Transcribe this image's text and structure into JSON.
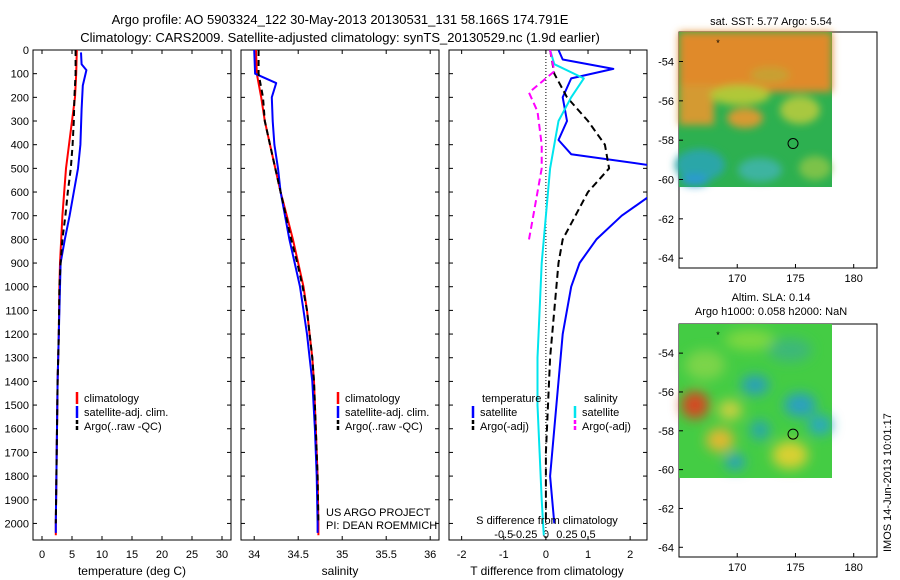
{
  "header": {
    "title_line1": "Argo profile: AO 5903324_122 30-May-2013 20130531_131 58.166S 174.791E",
    "title_line2": "Climatology: CARS2009. Satellite-adjusted climatology: synTS_20130529.nc (1.9d earlier)"
  },
  "side_stamp": "IMOS 14-Jun-2013 10:01:17",
  "colors": {
    "climatology": "#ff0000",
    "satellite": "#0000ff",
    "argo": "#000000",
    "sal_satellite": "#00e5ee",
    "sal_argo": "#ff00ff"
  },
  "chart_data": [
    {
      "id": "temperature",
      "type": "line",
      "xlabel": "temperature (deg C)",
      "ylabel": "",
      "xlim": [
        -1.5,
        31.5
      ],
      "ylim": [
        2070,
        0
      ],
      "xticks": [
        0,
        5,
        10,
        15,
        20,
        25,
        30
      ],
      "xtick_labels": [
        "0",
        "5",
        "10",
        "15",
        "20",
        "25",
        "30"
      ],
      "yticks": [
        0,
        100,
        200,
        300,
        400,
        500,
        600,
        700,
        800,
        900,
        1000,
        1100,
        1200,
        1300,
        1400,
        1500,
        1600,
        1700,
        1800,
        1900,
        2000
      ],
      "ytick_labels": [
        "0",
        "100",
        "200",
        "300",
        "400",
        "500",
        "600",
        "700",
        "800",
        "900",
        "1000",
        "1100",
        "1200",
        "1300",
        "1400",
        "1500",
        "1600",
        "1700",
        "1800",
        "1900",
        "2000"
      ],
      "legend": [
        "climatology",
        "satellite-adj. clim.",
        "Argo(..raw -QC)"
      ],
      "series": [
        {
          "name": "climatology",
          "color": "#ff0000",
          "dash": "",
          "points": [
            [
              5.8,
              0
            ],
            [
              5.7,
              100
            ],
            [
              5.5,
              200
            ],
            [
              5.0,
              300
            ],
            [
              4.5,
              400
            ],
            [
              4.0,
              500
            ],
            [
              3.7,
              600
            ],
            [
              3.4,
              700
            ],
            [
              3.2,
              800
            ],
            [
              3.0,
              900
            ],
            [
              2.9,
              1000
            ],
            [
              2.8,
              1200
            ],
            [
              2.6,
              1400
            ],
            [
              2.5,
              1600
            ],
            [
              2.4,
              1800
            ],
            [
              2.3,
              2000
            ],
            [
              2.3,
              2050
            ]
          ]
        },
        {
          "name": "satellite-adj. clim.",
          "color": "#0000ff",
          "dash": "",
          "points": [
            [
              6.5,
              10
            ],
            [
              6.6,
              60
            ],
            [
              7.4,
              85
            ],
            [
              6.8,
              150
            ],
            [
              6.6,
              250
            ],
            [
              6.4,
              400
            ],
            [
              6.0,
              500
            ],
            [
              5.3,
              600
            ],
            [
              4.6,
              700
            ],
            [
              3.8,
              800
            ],
            [
              3.1,
              900
            ],
            [
              3.0,
              1000
            ],
            [
              2.8,
              1200
            ],
            [
              2.6,
              1400
            ],
            [
              2.5,
              1600
            ],
            [
              2.4,
              1800
            ],
            [
              2.3,
              2000
            ],
            [
              2.3,
              2040
            ]
          ]
        },
        {
          "name": "Argo(..raw -QC)",
          "color": "#000000",
          "dash": "6,4",
          "points": [
            [
              5.6,
              0
            ],
            [
              5.6,
              100
            ],
            [
              5.4,
              200
            ],
            [
              5.3,
              300
            ],
            [
              5.1,
              400
            ],
            [
              4.8,
              500
            ],
            [
              4.3,
              600
            ],
            [
              3.9,
              700
            ],
            [
              3.4,
              800
            ],
            [
              3.1,
              900
            ],
            [
              2.9,
              1000
            ],
            [
              2.8,
              1200
            ],
            [
              2.6,
              1400
            ],
            [
              2.5,
              1600
            ],
            [
              2.4,
              1800
            ],
            [
              2.3,
              2000
            ]
          ]
        }
      ]
    },
    {
      "id": "salinity",
      "type": "line",
      "xlabel": "salinity",
      "xlim": [
        33.85,
        36.1
      ],
      "ylim": [
        2070,
        0
      ],
      "xticks": [
        34,
        34.5,
        35,
        35.5,
        36
      ],
      "xtick_labels": [
        "34",
        "34.5",
        "35",
        "35.5",
        "36"
      ],
      "legend": [
        "climatology",
        "satellite-adj. clim.",
        "Argo(..raw -QC)"
      ],
      "annotation_line1": "US ARGO PROJECT",
      "annotation_line2": "PI: DEAN ROEMMICH",
      "series": [
        {
          "name": "climatology",
          "color": "#ff0000",
          "dash": "",
          "points": [
            [
              34.02,
              0
            ],
            [
              34.03,
              100
            ],
            [
              34.08,
              200
            ],
            [
              34.12,
              300
            ],
            [
              34.18,
              400
            ],
            [
              34.24,
              500
            ],
            [
              34.3,
              600
            ],
            [
              34.37,
              700
            ],
            [
              34.44,
              800
            ],
            [
              34.5,
              900
            ],
            [
              34.56,
              1000
            ],
            [
              34.6,
              1100
            ],
            [
              34.63,
              1200
            ],
            [
              34.66,
              1300
            ],
            [
              34.68,
              1400
            ],
            [
              34.7,
              1600
            ],
            [
              34.72,
              1800
            ],
            [
              34.73,
              2000
            ],
            [
              34.73,
              2050
            ]
          ]
        },
        {
          "name": "satellite-adj. clim.",
          "color": "#0000ff",
          "dash": "",
          "points": [
            [
              34.0,
              0
            ],
            [
              34.01,
              100
            ],
            [
              34.25,
              140
            ],
            [
              34.2,
              200
            ],
            [
              34.21,
              300
            ],
            [
              34.23,
              400
            ],
            [
              34.27,
              500
            ],
            [
              34.3,
              600
            ],
            [
              34.35,
              700
            ],
            [
              34.4,
              800
            ],
            [
              34.46,
              900
            ],
            [
              34.52,
              1000
            ],
            [
              34.56,
              1100
            ],
            [
              34.6,
              1200
            ],
            [
              34.63,
              1300
            ],
            [
              34.66,
              1400
            ],
            [
              34.69,
              1600
            ],
            [
              34.71,
              1800
            ],
            [
              34.72,
              2000
            ],
            [
              34.72,
              2040
            ]
          ]
        },
        {
          "name": "Argo(..raw -QC)",
          "color": "#000000",
          "dash": "6,4",
          "points": [
            [
              34.05,
              0
            ],
            [
              34.05,
              100
            ],
            [
              34.1,
              200
            ],
            [
              34.12,
              300
            ],
            [
              34.18,
              400
            ],
            [
              34.24,
              500
            ],
            [
              34.3,
              600
            ],
            [
              34.36,
              700
            ],
            [
              34.42,
              800
            ],
            [
              34.49,
              900
            ],
            [
              34.55,
              1000
            ],
            [
              34.6,
              1100
            ],
            [
              34.63,
              1200
            ],
            [
              34.66,
              1300
            ],
            [
              34.68,
              1400
            ],
            [
              34.7,
              1600
            ],
            [
              34.72,
              1800
            ],
            [
              34.73,
              2000
            ]
          ]
        }
      ]
    },
    {
      "id": "difference",
      "type": "line",
      "xlabel": "T difference from climatology",
      "xlabel_top": "S difference from climatology",
      "xlim": [
        -2.3,
        2.4
      ],
      "ylim": [
        2070,
        0
      ],
      "xticks": [
        -2,
        -1,
        0,
        1,
        2
      ],
      "xtick_labels": [
        "-2",
        "-1",
        "0",
        "1",
        "2"
      ],
      "sticks": [
        -1,
        -0.5,
        0,
        0.5,
        1
      ],
      "stick_labels": [
        "-0.5",
        "-0.25",
        "0",
        "0.25",
        "0.5"
      ],
      "legend_temperature_title": "temperature",
      "legend_salinity_title": "salinity",
      "legend_temperature": [
        "satellite",
        "Argo(-adj)"
      ],
      "legend_salinity": [
        "satellite",
        "Argo(-adj)"
      ],
      "series": [
        {
          "name": "T satellite",
          "color": "#0000ff",
          "dash": "",
          "points": [
            [
              0.3,
              0
            ],
            [
              0.4,
              40
            ],
            [
              1.6,
              80
            ],
            [
              0.6,
              120
            ],
            [
              0.4,
              200
            ],
            [
              0.5,
              300
            ],
            [
              0.3,
              380
            ],
            [
              0.6,
              440
            ],
            [
              3.0,
              500
            ],
            [
              2.6,
              600
            ],
            [
              1.8,
              700
            ],
            [
              1.2,
              800
            ],
            [
              0.8,
              900
            ],
            [
              0.6,
              1000
            ],
            [
              0.4,
              1200
            ],
            [
              0.3,
              1400
            ],
            [
              0.2,
              1600
            ],
            [
              0.1,
              1800
            ],
            [
              0.2,
              2000
            ]
          ]
        },
        {
          "name": "T Argo(-adj)",
          "color": "#000000",
          "dash": "7,4",
          "points": [
            [
              0.1,
              0
            ],
            [
              0.2,
              100
            ],
            [
              0.5,
              200
            ],
            [
              1.0,
              300
            ],
            [
              1.4,
              400
            ],
            [
              1.5,
              500
            ],
            [
              1.0,
              600
            ],
            [
              0.7,
              700
            ],
            [
              0.4,
              800
            ],
            [
              0.3,
              900
            ],
            [
              0.2,
              1100
            ],
            [
              0.1,
              1300
            ],
            [
              0.05,
              1500
            ],
            [
              0.0,
              1700
            ],
            [
              0.0,
              2000
            ]
          ]
        },
        {
          "name": "S satellite",
          "color": "#00e5ee",
          "dash": "",
          "points": [
            [
              0.1,
              0
            ],
            [
              0.2,
              60
            ],
            [
              0.9,
              120
            ],
            [
              0.6,
              200
            ],
            [
              0.3,
              300
            ],
            [
              0.2,
              400
            ],
            [
              0.1,
              500
            ],
            [
              0.0,
              700
            ],
            [
              -0.1,
              900
            ],
            [
              -0.15,
              1100
            ],
            [
              -0.2,
              1300
            ],
            [
              -0.2,
              1500
            ],
            [
              -0.15,
              1700
            ],
            [
              -0.1,
              1900
            ],
            [
              -0.05,
              2050
            ]
          ]
        },
        {
          "name": "S Argo(-adj)",
          "color": "#ff00ff",
          "dash": "7,4",
          "points": [
            [
              0.1,
              0
            ],
            [
              0.2,
              90
            ],
            [
              -0.4,
              180
            ],
            [
              -0.2,
              260
            ],
            [
              -0.1,
              400
            ],
            [
              -0.1,
              500
            ],
            [
              -0.2,
              600
            ],
            [
              -0.3,
              700
            ],
            [
              -0.4,
              800
            ]
          ]
        }
      ]
    }
  ],
  "sst_map": {
    "title": "sat. SST: 5.77 Argo: 5.54",
    "xticks": [
      170,
      175,
      180
    ],
    "yticks": [
      -54,
      -56,
      -58,
      -60,
      -62,
      -64
    ],
    "xlim": [
      165,
      182
    ],
    "ylim": [
      -64.5,
      -52.5
    ],
    "data_extent": {
      "lon": [
        165,
        180
      ],
      "lat": [
        -60,
        -52.5
      ]
    },
    "argo_position": [
      174.79,
      -58.17
    ]
  },
  "sla_map": {
    "title_line1": "Altim. SLA: 0.14",
    "title_line2": "Argo h1000: 0.058 h2000: NaN",
    "xticks": [
      170,
      175,
      180
    ],
    "yticks": [
      -54,
      -56,
      -58,
      -60,
      -62,
      -64
    ],
    "xlim": [
      165,
      182
    ],
    "ylim": [
      -64.5,
      -52.5
    ],
    "data_extent": {
      "lon": [
        165,
        180
      ],
      "lat": [
        -60,
        -52.5
      ]
    },
    "argo_position": [
      174.79,
      -58.17
    ]
  }
}
